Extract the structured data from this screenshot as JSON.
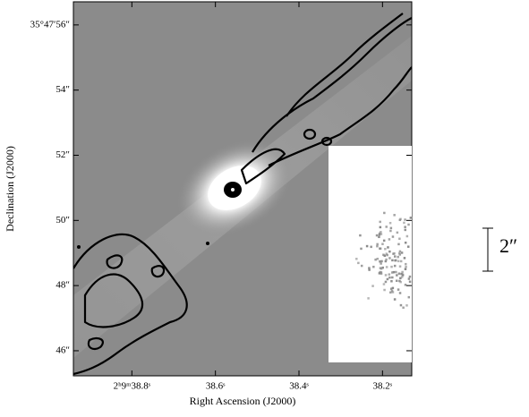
{
  "chart_data": {
    "type": "image",
    "xlabel": "Right Ascension (J2000)",
    "ylabel": "Declination (J2000)",
    "xlim": [
      38.94,
      38.13
    ],
    "ylim": [
      45.23,
      56.71
    ],
    "xticks": [
      {
        "value": 38.8,
        "label": "2ʰ9ᵐ38.8ˢ"
      },
      {
        "value": 38.6,
        "label": "38.6ˢ"
      },
      {
        "value": 38.4,
        "label": "38.4ˢ"
      },
      {
        "value": 38.2,
        "label": "38.2ˢ"
      }
    ],
    "yticks": [
      {
        "value": 46,
        "label": "46″"
      },
      {
        "value": 48,
        "label": "48″"
      },
      {
        "value": 50,
        "label": "50″"
      },
      {
        "value": 52,
        "label": "52″"
      },
      {
        "value": 54,
        "label": "54″"
      },
      {
        "value": 56,
        "label": "35°47′56″"
      }
    ],
    "scale_bar_label": "2″"
  }
}
